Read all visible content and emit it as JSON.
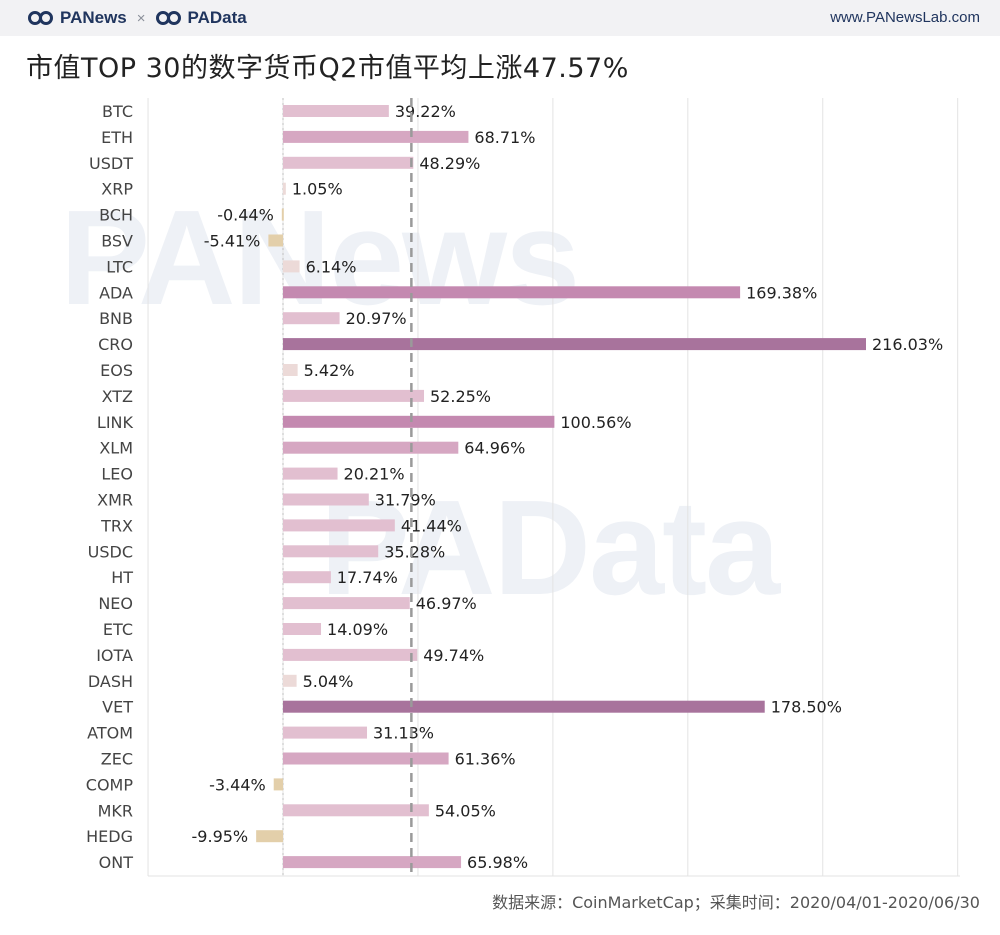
{
  "header": {
    "brand_left": "PANews",
    "brand_sep": "×",
    "brand_right": "PAData",
    "site_url": "www.PANewsLab.com"
  },
  "title": "市值TOP 30的数字货币Q2市值平均上涨47.57%",
  "watermarks": [
    "PANews",
    "PAData"
  ],
  "source": "数据来源：CoinMarketCap；采集时间：2020/04/01-2020/06/30",
  "colors": {
    "positive_light": "#e2bfd0",
    "positive_mid": "#d6a7c2",
    "positive_strong": "#c489b0",
    "positive_max": "#a8739c",
    "negative": "#e3cfaa",
    "near_zero": "#ecdad8",
    "average_line": "#9a9a9a",
    "grid": "#e3e3e3"
  },
  "chart_data": {
    "type": "bar",
    "orientation": "horizontal",
    "categories": [
      "BTC",
      "ETH",
      "USDT",
      "XRP",
      "BCH",
      "BSV",
      "LTC",
      "ADA",
      "BNB",
      "CRO",
      "EOS",
      "XTZ",
      "LINK",
      "XLM",
      "LEO",
      "XMR",
      "TRX",
      "USDC",
      "HT",
      "NEO",
      "ETC",
      "IOTA",
      "DASH",
      "VET",
      "ATOM",
      "ZEC",
      "COMP",
      "MKR",
      "HEDG",
      "ONT"
    ],
    "values": [
      39.22,
      68.71,
      48.29,
      1.05,
      -0.44,
      -5.41,
      6.14,
      169.38,
      20.97,
      216.03,
      5.42,
      52.25,
      100.56,
      64.96,
      20.21,
      31.79,
      41.44,
      35.28,
      17.74,
      46.97,
      14.09,
      49.74,
      5.04,
      178.5,
      31.13,
      61.36,
      -3.44,
      54.05,
      -9.95,
      65.98
    ],
    "labels": [
      "39.22%",
      "68.71%",
      "48.29%",
      "1.05%",
      "-0.44%",
      "-5.41%",
      "6.14%",
      "169.38%",
      "20.97%",
      "216.03%",
      "5.42%",
      "52.25%",
      "100.56%",
      "64.96%",
      "20.21%",
      "31.79%",
      "41.44%",
      "35.28%",
      "17.74%",
      "46.97%",
      "14.09%",
      "49.74%",
      "5.04%",
      "178.50%",
      "31.13%",
      "61.36%",
      "-3.44%",
      "54.05%",
      "-9.95%",
      "65.98%"
    ],
    "unit": "%",
    "average": 47.57,
    "xlim": [
      -40,
      250
    ],
    "grid": true,
    "legend": "none"
  }
}
